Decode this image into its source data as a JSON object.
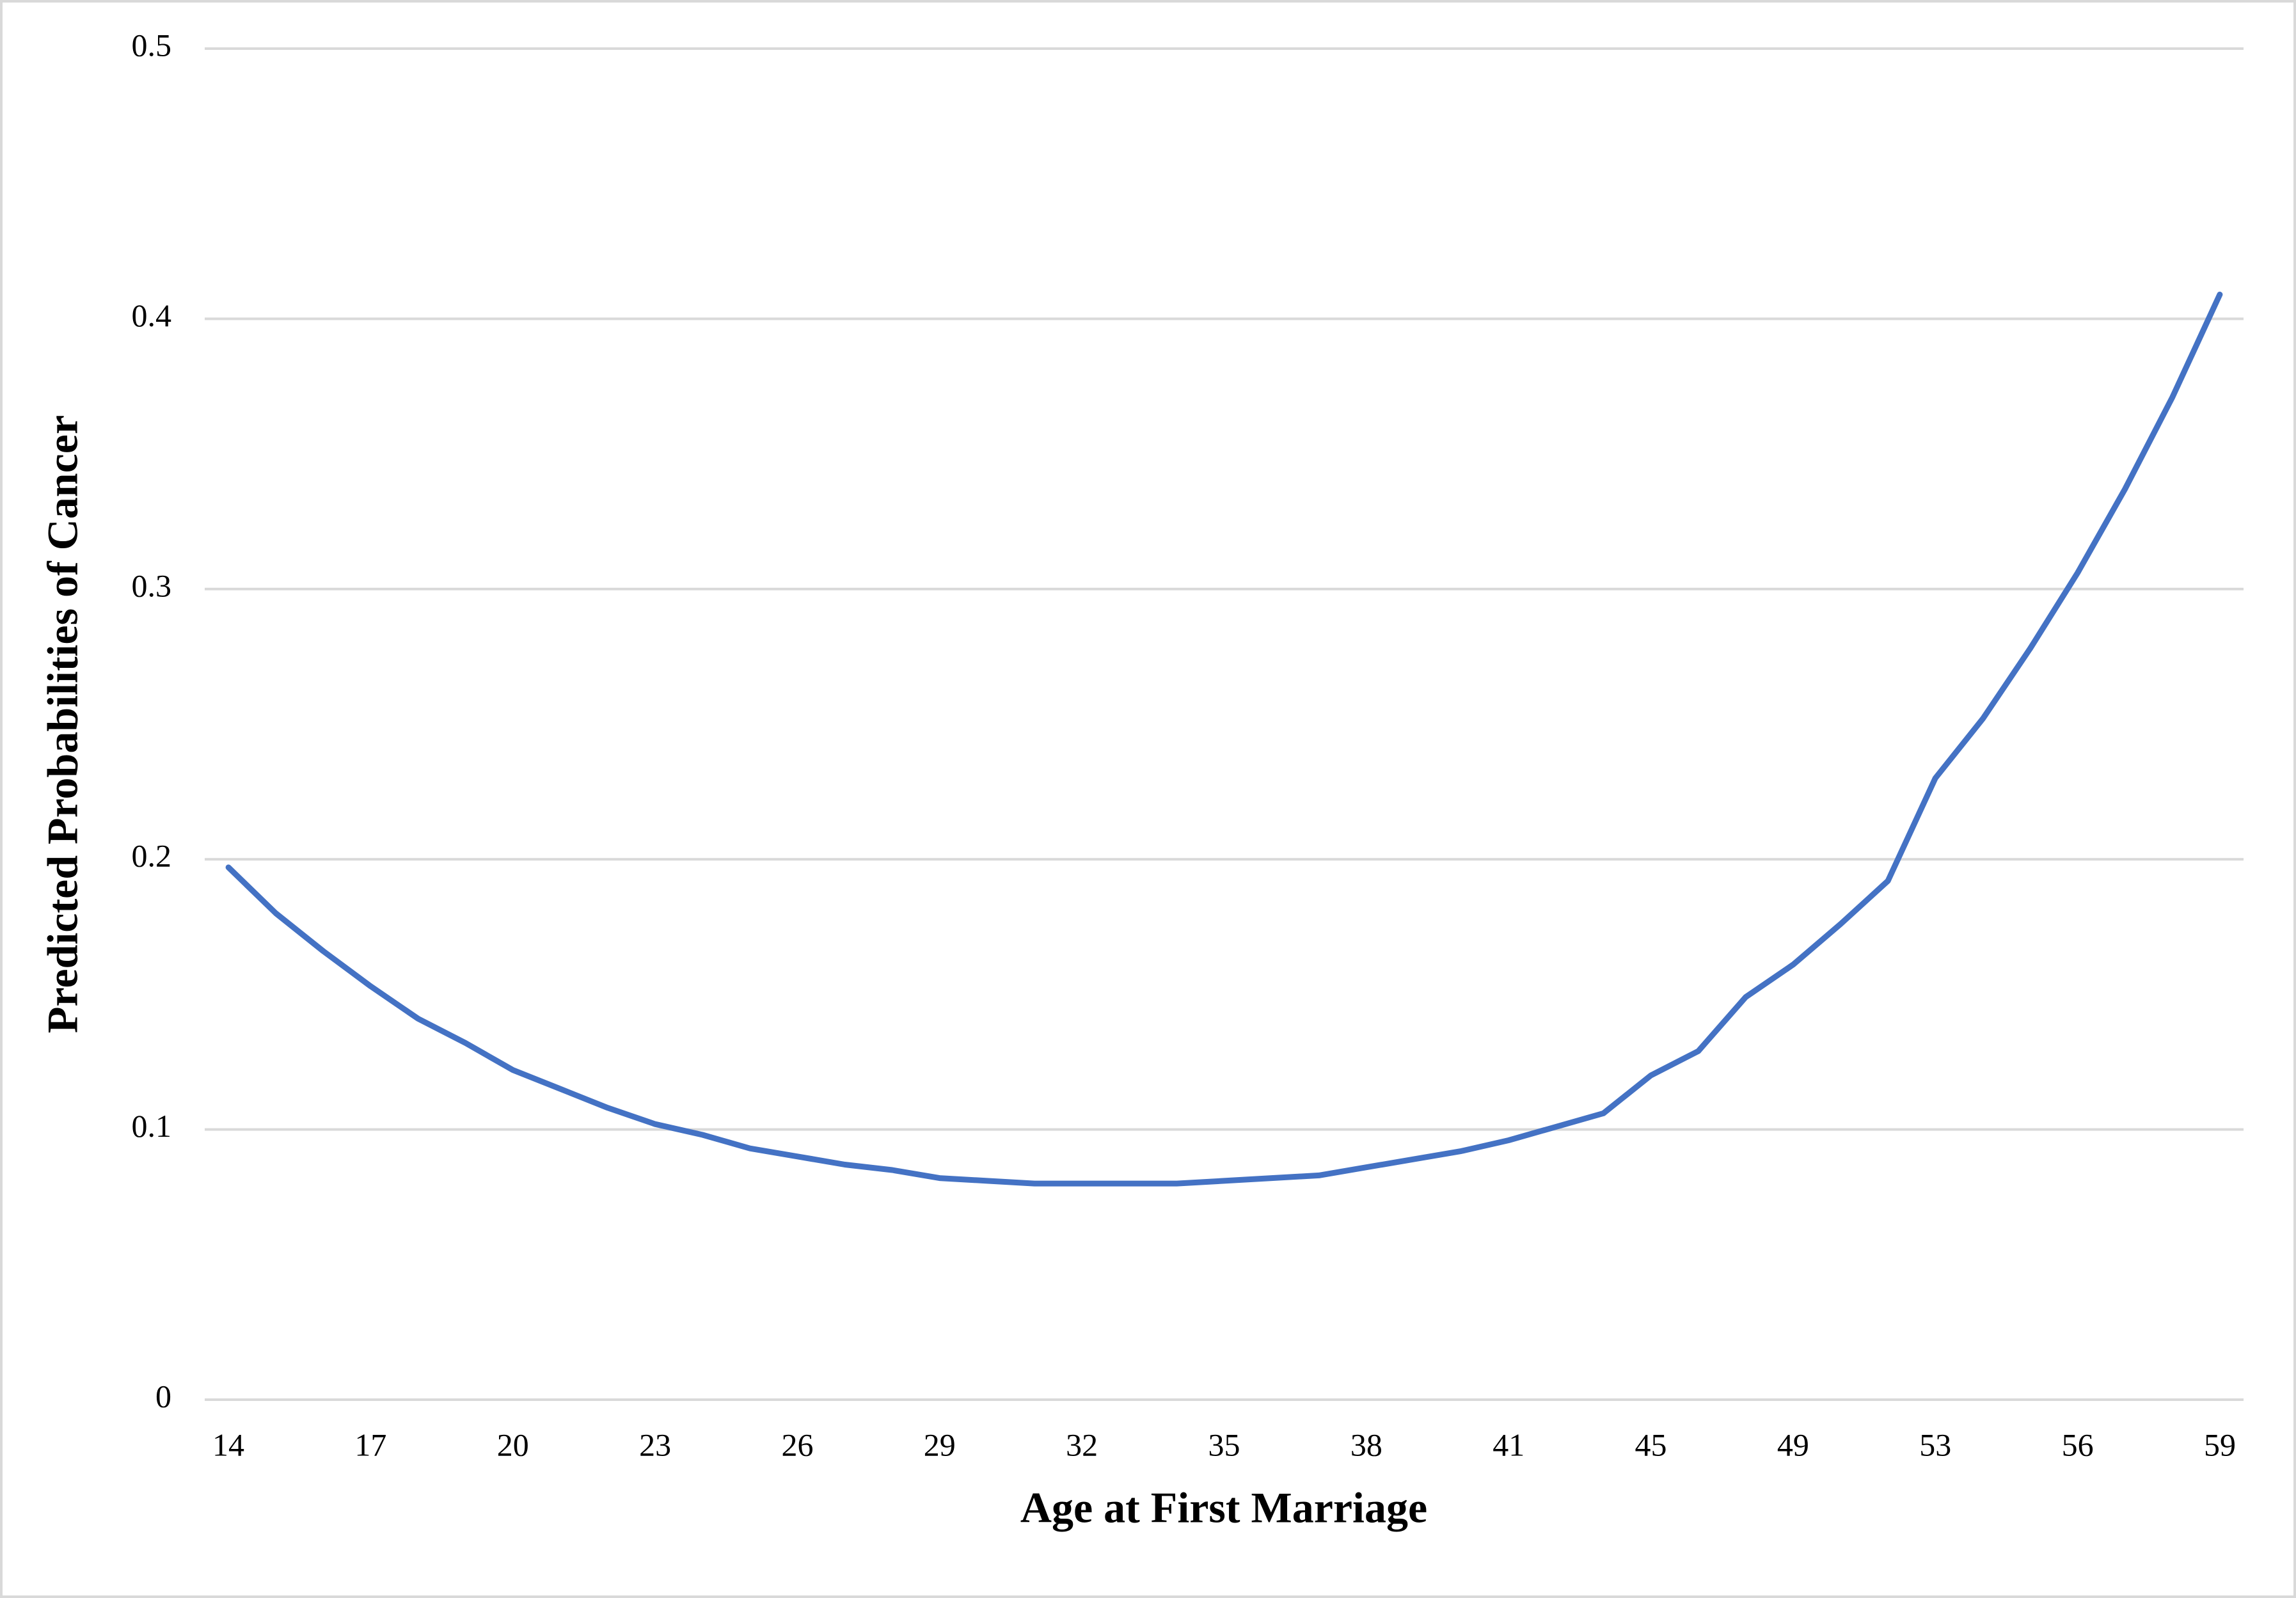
{
  "chart_data": {
    "type": "line",
    "x_label": "Age at First Marriage",
    "y_label": "Predicted Probabilities of Cancer",
    "categories": [
      "14",
      null,
      null,
      "17",
      null,
      null,
      "20",
      null,
      null,
      "23",
      null,
      null,
      "26",
      null,
      null,
      "29",
      null,
      null,
      "32",
      null,
      null,
      "35",
      null,
      null,
      "38",
      null,
      null,
      "41",
      null,
      null,
      "45",
      null,
      null,
      "49",
      null,
      null,
      "53",
      null,
      null,
      "56",
      null,
      null,
      "59"
    ],
    "values": [
      0.197,
      0.18,
      0.166,
      0.153,
      0.141,
      0.132,
      0.122,
      0.115,
      0.108,
      0.102,
      0.098,
      0.093,
      0.09,
      0.087,
      0.085,
      0.082,
      0.081,
      0.08,
      0.08,
      0.08,
      0.08,
      0.081,
      0.082,
      0.083,
      0.086,
      0.089,
      0.092,
      0.096,
      0.101,
      0.106,
      0.12,
      0.129,
      0.149,
      0.161,
      0.176,
      0.192,
      0.23,
      0.252,
      0.278,
      0.306,
      0.337,
      0.371,
      0.409
    ],
    "color": "#4472c4",
    "ylim": [
      0,
      0.5
    ],
    "yticks": [
      0,
      0.1,
      0.2,
      0.3,
      0.4,
      0.5
    ],
    "grid": true
  }
}
